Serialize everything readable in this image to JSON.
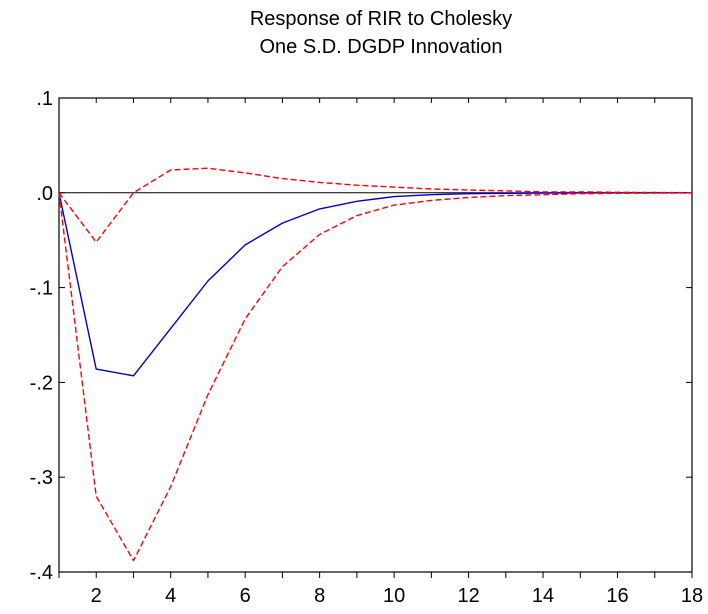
{
  "chart_data": {
    "type": "line",
    "title": [
      "Response of RIR to Cholesky",
      "One S.D. DGDP Innovation"
    ],
    "xlabel": "",
    "ylabel": "",
    "xlim": [
      1,
      18
    ],
    "ylim": [
      -0.4,
      0.1
    ],
    "x_ticks": [
      2,
      4,
      6,
      8,
      10,
      12,
      14,
      16,
      18
    ],
    "x_tick_labels": [
      "2",
      "4",
      "6",
      "8",
      "10",
      "12",
      "14",
      "16",
      "18"
    ],
    "y_ticks": [
      0.1,
      0.0,
      -0.1,
      -0.2,
      -0.3,
      -0.4
    ],
    "y_tick_labels": [
      ".1",
      ".0",
      "-.1",
      "-.2",
      "-.3",
      "-.4"
    ],
    "zero_line": true,
    "grid": false,
    "x": [
      1,
      2,
      3,
      4,
      5,
      6,
      7,
      8,
      9,
      10,
      11,
      12,
      13,
      14,
      15,
      16,
      17,
      18
    ],
    "series": [
      {
        "color": "#0000cc",
        "style": "solid",
        "values": [
          0.0,
          -0.186,
          -0.193,
          -0.143,
          -0.093,
          -0.055,
          -0.032,
          -0.017,
          -0.009,
          -0.004,
          -0.002,
          -0.001,
          -0.0005,
          -0.0002,
          -0.0001,
          0.0,
          0.0,
          0.0
        ]
      },
      {
        "color": "#ff0000",
        "style": "dashed",
        "values": [
          0.0,
          -0.052,
          0.0,
          0.024,
          0.026,
          0.021,
          0.015,
          0.011,
          0.008,
          0.006,
          0.004,
          0.003,
          0.002,
          0.001,
          0.001,
          0.0005,
          0.0003,
          0.0001
        ]
      },
      {
        "color": "#ff0000",
        "style": "dashed",
        "values": [
          0.0,
          -0.32,
          -0.388,
          -0.31,
          -0.213,
          -0.133,
          -0.078,
          -0.044,
          -0.024,
          -0.013,
          -0.008,
          -0.005,
          -0.003,
          -0.002,
          -0.001,
          -0.0005,
          -0.0003,
          -0.0001
        ]
      }
    ]
  }
}
